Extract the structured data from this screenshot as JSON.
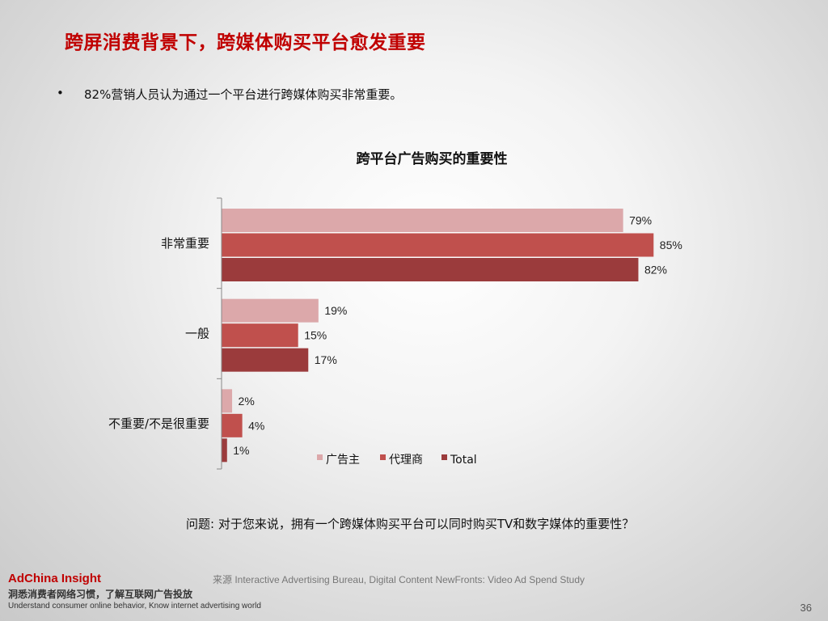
{
  "slide": {
    "title": "跨屏消费背景下，跨媒体购买平台愈发重要",
    "bullet_symbol": "•",
    "bullet_text": "82%营销人员认为通过一个平台进行跨媒体购买非常重要。",
    "question": "问题: 对于您来说，拥有一个跨媒体购买平台可以同时购买TV和数字媒体的重要性？",
    "source": "来源  Interactive Advertising Bureau, Digital Content NewFronts: Video Ad Spend Study",
    "page_number": "36"
  },
  "brand": {
    "name": "AdChina Insight",
    "tagline_cn": "洞悉消费者网络习惯，了解互联网广告投放",
    "tagline_en": "Understand consumer online behavior, Know internet advertising world"
  },
  "colors": {
    "title_red": "#c00000",
    "series_1": "#dca8aa",
    "series_2": "#c0504d",
    "series_3": "#9b3b3c"
  },
  "chart_data": {
    "type": "bar",
    "orientation": "horizontal",
    "title": "跨平台广告购买的重要性",
    "categories": [
      "非常重要",
      "一般",
      "不重要/不是很重要"
    ],
    "series": [
      {
        "name": "广告主",
        "values": [
          79,
          19,
          2
        ]
      },
      {
        "name": "代理商",
        "values": [
          85,
          15,
          4
        ]
      },
      {
        "name": "Total",
        "values": [
          82,
          17,
          1
        ]
      }
    ],
    "value_suffix": "%",
    "xlim": [
      0,
      100
    ],
    "legend_position": "bottom-right inside plot",
    "grid": false
  }
}
